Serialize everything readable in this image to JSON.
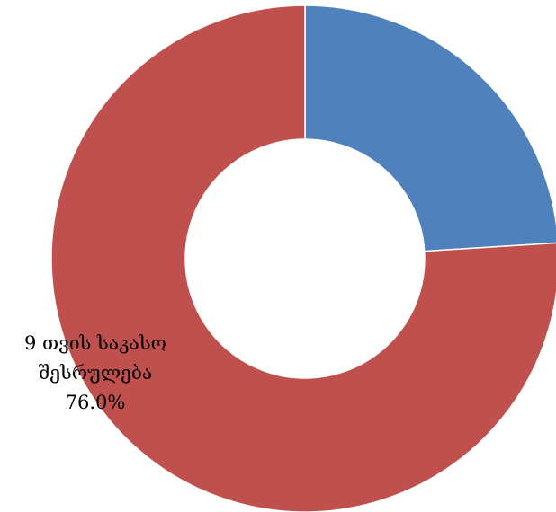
{
  "chart_data": {
    "type": "pie",
    "variant": "doughnut",
    "slices": [
      {
        "value": 24.0,
        "color": "#4F81BD"
      },
      {
        "label_lines": [
          "9 თვის საკასო",
          "შესრულება"
        ],
        "value": 76.0,
        "value_label": "76.0%",
        "color": "#C0504D"
      }
    ],
    "start_angle_deg": 0,
    "direction": "clockwise",
    "legend": "none",
    "slice_border_color": "#ffffff"
  }
}
